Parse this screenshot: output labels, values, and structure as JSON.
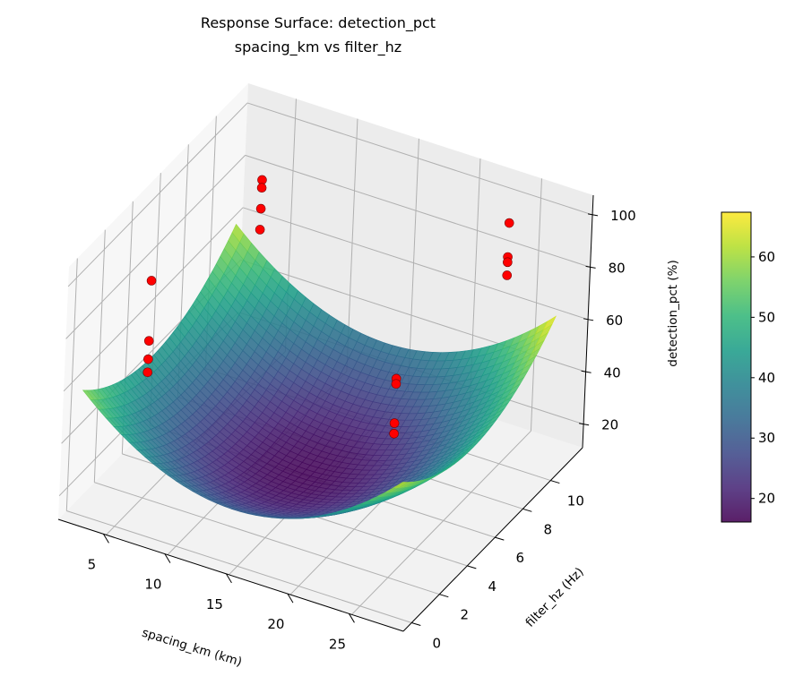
{
  "chart_data": {
    "type": "surface3d",
    "title": "Response Surface: detection_pct",
    "subtitle": "spacing_km vs filter_hz",
    "xlabel": "spacing_km (km)",
    "ylabel": "filter_hz (Hz)",
    "zlabel": "detection_pct (%)",
    "xlim": [
      1.1,
      29.2
    ],
    "ylim": [
      -0.6,
      12.3
    ],
    "zlim": [
      11,
      107.5
    ],
    "xticks": [
      5,
      10,
      15,
      20,
      25
    ],
    "yticks": [
      0,
      2,
      4,
      6,
      8,
      10
    ],
    "zticks": [
      20,
      40,
      60,
      80,
      100
    ],
    "surface": {
      "model": "z = c + a*(x-x0)^2 + b*(y-y0)^2",
      "c": 17,
      "a": 0.17,
      "x0": 14.5,
      "b": 0.55,
      "y0": 5.2,
      "x_range": [
        2,
        28
      ],
      "y_range": [
        0,
        11
      ],
      "colormap": "viridis",
      "alpha": 0.85
    },
    "colorbar": {
      "min": 16.1,
      "max": 67.4,
      "ticks": [
        20,
        30,
        40,
        50,
        60
      ]
    },
    "scatter": {
      "color": "#ff0000",
      "points": [
        {
          "x": 5,
          "y": 10,
          "z": 89
        },
        {
          "x": 5,
          "y": 10,
          "z": 86
        },
        {
          "x": 5,
          "y": 10,
          "z": 78
        },
        {
          "x": 5,
          "y": 10,
          "z": 70
        },
        {
          "x": 25,
          "y": 10,
          "z": 103
        },
        {
          "x": 25,
          "y": 10,
          "z": 90
        },
        {
          "x": 25,
          "y": 10,
          "z": 88
        },
        {
          "x": 25,
          "y": 10,
          "z": 83
        },
        {
          "x": 5,
          "y": 2,
          "z": 94
        },
        {
          "x": 5,
          "y": 2,
          "z": 71
        },
        {
          "x": 5,
          "y": 2,
          "z": 64
        },
        {
          "x": 5,
          "y": 2,
          "z": 59
        },
        {
          "x": 25,
          "y": 2,
          "z": 87
        },
        {
          "x": 25,
          "y": 2,
          "z": 85
        },
        {
          "x": 25,
          "y": 2,
          "z": 70
        },
        {
          "x": 25,
          "y": 2,
          "z": 66
        }
      ]
    }
  }
}
